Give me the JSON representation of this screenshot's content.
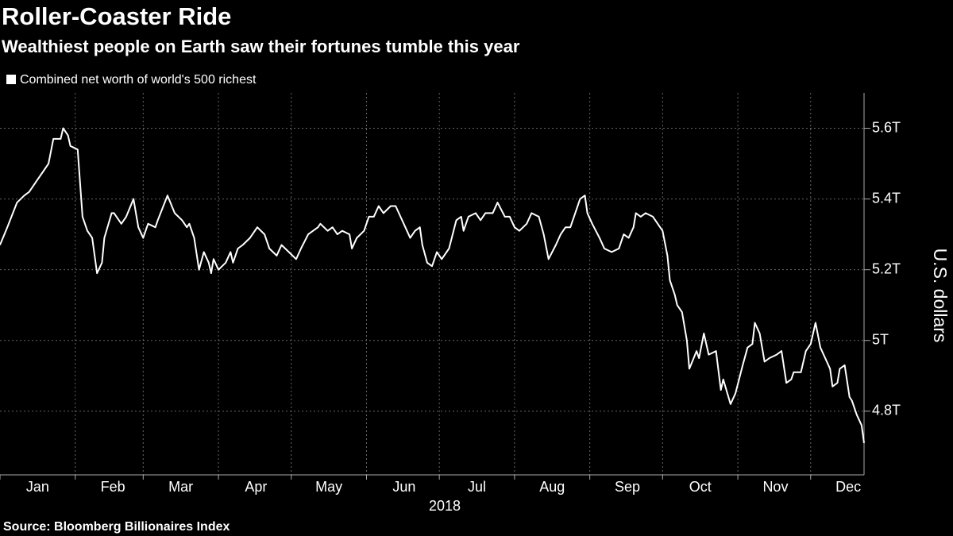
{
  "chart_data": {
    "type": "line",
    "title": "Roller-Coaster Ride",
    "subtitle": "Wealthiest people on Earth saw their fortunes tumble this year",
    "source": "Source: Bloomberg Billionaires Index",
    "xlabel": "2018",
    "ylabel": "U.S. dollars",
    "xlim": [
      0,
      356
    ],
    "xticks": [
      {
        "value": 0,
        "label": "Jan"
      },
      {
        "value": 31,
        "label": "Feb"
      },
      {
        "value": 59,
        "label": "Mar"
      },
      {
        "value": 90,
        "label": "Apr"
      },
      {
        "value": 120,
        "label": "May"
      },
      {
        "value": 151,
        "label": "Jun"
      },
      {
        "value": 181,
        "label": "Jul"
      },
      {
        "value": 212,
        "label": "Aug"
      },
      {
        "value": 243,
        "label": "Sep"
      },
      {
        "value": 273,
        "label": "Oct"
      },
      {
        "value": 304,
        "label": "Nov"
      },
      {
        "value": 334,
        "label": "Dec"
      }
    ],
    "ylim": [
      4.62,
      5.7
    ],
    "yticks": [
      {
        "value": 4.8,
        "label": "4.8T"
      },
      {
        "value": 5,
        "label": "5T"
      },
      {
        "value": 5.2,
        "label": "5.2T"
      },
      {
        "value": 5.4,
        "label": "5.4T"
      },
      {
        "value": 5.6,
        "label": "5.6T"
      }
    ],
    "y_axis_side": "right",
    "grid": true,
    "legend": "top-left",
    "x": [
      0,
      3,
      7,
      10,
      12,
      15,
      18,
      20,
      22,
      25,
      26,
      28,
      29,
      32,
      34,
      36,
      38,
      40,
      42,
      43,
      46,
      47,
      50,
      52,
      55,
      57,
      59,
      61,
      64,
      65,
      69,
      72,
      75,
      77,
      78,
      80,
      82,
      84,
      86,
      87,
      88,
      90,
      93,
      95,
      96,
      98,
      100,
      103,
      106,
      109,
      111,
      114,
      116,
      119,
      122,
      124,
      127,
      131,
      132,
      135,
      137,
      139,
      141,
      144,
      145,
      147,
      150,
      152,
      154,
      156,
      158,
      161,
      163,
      167,
      169,
      171,
      173,
      174,
      176,
      178,
      180,
      182,
      185,
      188,
      190,
      191,
      193,
      196,
      198,
      200,
      203,
      205,
      208,
      210,
      212,
      214,
      217,
      219,
      222,
      224,
      226,
      229,
      231,
      233,
      235,
      237,
      239,
      241,
      242,
      244,
      247,
      249,
      252,
      255,
      257,
      259,
      261,
      262,
      264,
      266,
      269,
      271,
      273,
      275,
      276,
      278,
      279,
      281,
      283,
      284,
      287,
      288,
      290,
      292,
      295,
      297,
      298,
      301,
      303,
      306,
      308,
      310,
      311,
      313,
      315,
      317,
      320,
      322,
      324,
      326,
      327,
      330,
      332,
      334,
      336,
      338,
      340,
      342,
      343,
      345,
      346,
      348,
      350,
      351,
      353,
      355,
      356
    ],
    "series": [
      {
        "name": "Combined net worth of world's 500 richest",
        "color": "#ffffff",
        "values": [
          5.27,
          5.32,
          5.39,
          5.41,
          5.42,
          5.45,
          5.48,
          5.5,
          5.57,
          5.57,
          5.6,
          5.58,
          5.55,
          5.54,
          5.35,
          5.31,
          5.29,
          5.19,
          5.22,
          5.29,
          5.36,
          5.36,
          5.33,
          5.35,
          5.4,
          5.32,
          5.29,
          5.33,
          5.32,
          5.34,
          5.41,
          5.36,
          5.34,
          5.32,
          5.33,
          5.29,
          5.2,
          5.25,
          5.22,
          5.19,
          5.23,
          5.2,
          5.22,
          5.25,
          5.22,
          5.26,
          5.27,
          5.29,
          5.32,
          5.3,
          5.26,
          5.24,
          5.27,
          5.25,
          5.23,
          5.26,
          5.3,
          5.32,
          5.33,
          5.31,
          5.32,
          5.3,
          5.31,
          5.3,
          5.26,
          5.29,
          5.31,
          5.35,
          5.35,
          5.38,
          5.36,
          5.38,
          5.38,
          5.32,
          5.29,
          5.31,
          5.32,
          5.27,
          5.22,
          5.21,
          5.25,
          5.23,
          5.26,
          5.34,
          5.35,
          5.31,
          5.35,
          5.36,
          5.34,
          5.36,
          5.36,
          5.39,
          5.35,
          5.35,
          5.32,
          5.31,
          5.33,
          5.36,
          5.35,
          5.3,
          5.23,
          5.27,
          5.3,
          5.32,
          5.32,
          5.36,
          5.4,
          5.41,
          5.36,
          5.33,
          5.29,
          5.26,
          5.25,
          5.26,
          5.3,
          5.29,
          5.32,
          5.36,
          5.35,
          5.36,
          5.35,
          5.33,
          5.31,
          5.24,
          5.17,
          5.13,
          5.1,
          5.08,
          5.0,
          4.92,
          4.97,
          4.95,
          5.02,
          4.96,
          4.97,
          4.86,
          4.89,
          4.82,
          4.85,
          4.93,
          4.98,
          4.99,
          5.05,
          5.02,
          4.94,
          4.95,
          4.96,
          4.97,
          4.88,
          4.89,
          4.91,
          4.91,
          4.97,
          4.99,
          5.05,
          4.98,
          4.95,
          4.92,
          4.87,
          4.88,
          4.92,
          4.93,
          4.84,
          4.83,
          4.79,
          4.76,
          4.71
        ]
      }
    ]
  }
}
